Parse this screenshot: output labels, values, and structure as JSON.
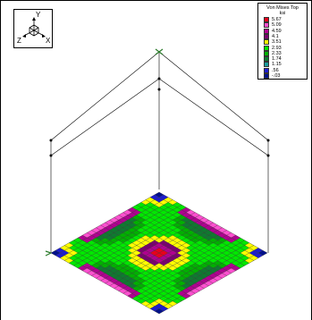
{
  "axes": {
    "y_label": "Y",
    "x_label": "X",
    "z_label": "Z"
  },
  "legend": {
    "title": "Von Mises Top",
    "units": "ksi",
    "entries": [
      {
        "value": "5.67",
        "color": "#e8001c"
      },
      {
        "value": "5.09",
        "color": "#ff4fd0"
      },
      {
        "value": "4.59",
        "color": "#b00090"
      },
      {
        "value": "4.1",
        "color": "#7a0070"
      },
      {
        "value": "3.51",
        "color": "#ffff00"
      },
      {
        "value": "2.93",
        "color": "#00e800"
      },
      {
        "value": "2.33",
        "color": "#00b000"
      },
      {
        "value": "1.74",
        "color": "#0f7a30"
      },
      {
        "value": "1.15",
        "color": "#1a9a9a"
      },
      {
        "value": ".56",
        "color": "#1c1cd0"
      },
      {
        "value": "-.03",
        "color": "#00108a"
      }
    ]
  },
  "colors": {
    "mesh_line": "#2a2a2a",
    "frame_line": "#000000",
    "support": "#2a7a2a"
  }
}
